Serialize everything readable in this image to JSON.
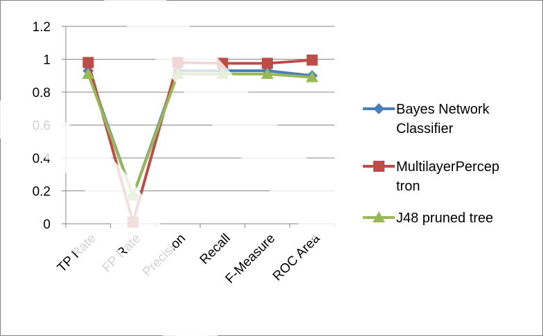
{
  "chart_data": {
    "type": "line",
    "categories": [
      "TP Rate",
      "FP Rate",
      "Precision",
      "Recall",
      "F-Measure",
      "ROC Area"
    ],
    "ylim": [
      0,
      1.2
    ],
    "yticks": [
      "0",
      "0.2",
      "0.4",
      "0.6",
      "0.8",
      "1",
      "1.2"
    ],
    "grid": true,
    "legend_position": "right",
    "series": [
      {
        "name": "Bayes Network Classifier",
        "legend_lines": [
          "Bayes Network",
          "Classifier"
        ],
        "color": "#4a7ebb",
        "marker": "diamond",
        "values": [
          0.93,
          0.17,
          0.93,
          0.93,
          0.93,
          0.9
        ]
      },
      {
        "name": "MultilayerPerceptron",
        "legend_lines": [
          "MultilayerPercep",
          "tron"
        ],
        "color": "#be4b48",
        "marker": "square",
        "values": [
          0.98,
          0.01,
          0.98,
          0.975,
          0.975,
          0.995
        ]
      },
      {
        "name": "J48 pruned tree",
        "legend_lines": [
          "J48 pruned tree"
        ],
        "color": "#98b954",
        "marker": "triangle",
        "values": [
          0.91,
          0.17,
          0.91,
          0.91,
          0.91,
          0.89
        ]
      }
    ]
  }
}
